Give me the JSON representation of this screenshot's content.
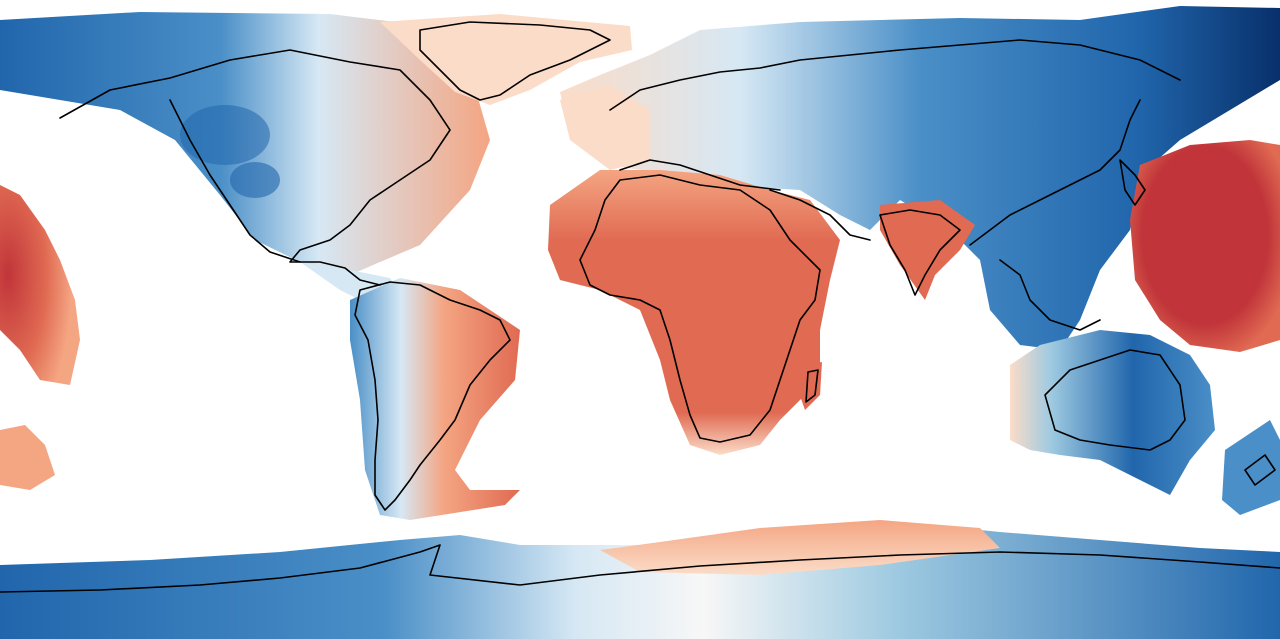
{
  "map": {
    "projection": "equirectangular",
    "basemap": "coastlines",
    "colormap": "diverging-blue-white-red",
    "colors": {
      "dark_blue": "#08306b",
      "blue": "#2166ac",
      "mid_blue": "#4a8fc7",
      "light_blue": "#9ecae1",
      "pale_blue": "#d6e8f4",
      "neutral": "#f7f7f7",
      "pale_red": "#fbdcc8",
      "light_red": "#f4a582",
      "red": "#e06a52",
      "dark_red": "#c1353a",
      "coastline": "#000000",
      "background": "#ffffff"
    }
  }
}
